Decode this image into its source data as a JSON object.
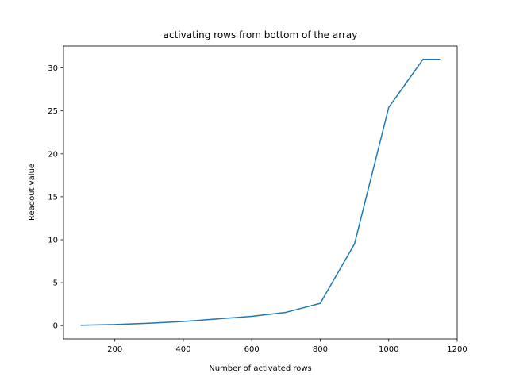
{
  "chart_data": {
    "type": "line",
    "title": "activating rows from bottom of the array",
    "xlabel": "Number of activated rows",
    "ylabel": "Readout value",
    "xlim": [
      50,
      1200
    ],
    "ylim": [
      -1.55,
      32.55
    ],
    "xticks": [
      200,
      400,
      600,
      800,
      1000,
      1200
    ],
    "yticks": [
      0,
      5,
      10,
      15,
      20,
      25,
      30
    ],
    "grid": false,
    "series": [
      {
        "color": "#1f77b4",
        "x": [
          100,
          200,
          300,
          400,
          500,
          600,
          700,
          800,
          900,
          1000,
          1100,
          1150
        ],
        "y": [
          0.05,
          0.12,
          0.28,
          0.48,
          0.78,
          1.08,
          1.55,
          2.6,
          9.5,
          25.4,
          31.0,
          31.0
        ]
      }
    ]
  }
}
